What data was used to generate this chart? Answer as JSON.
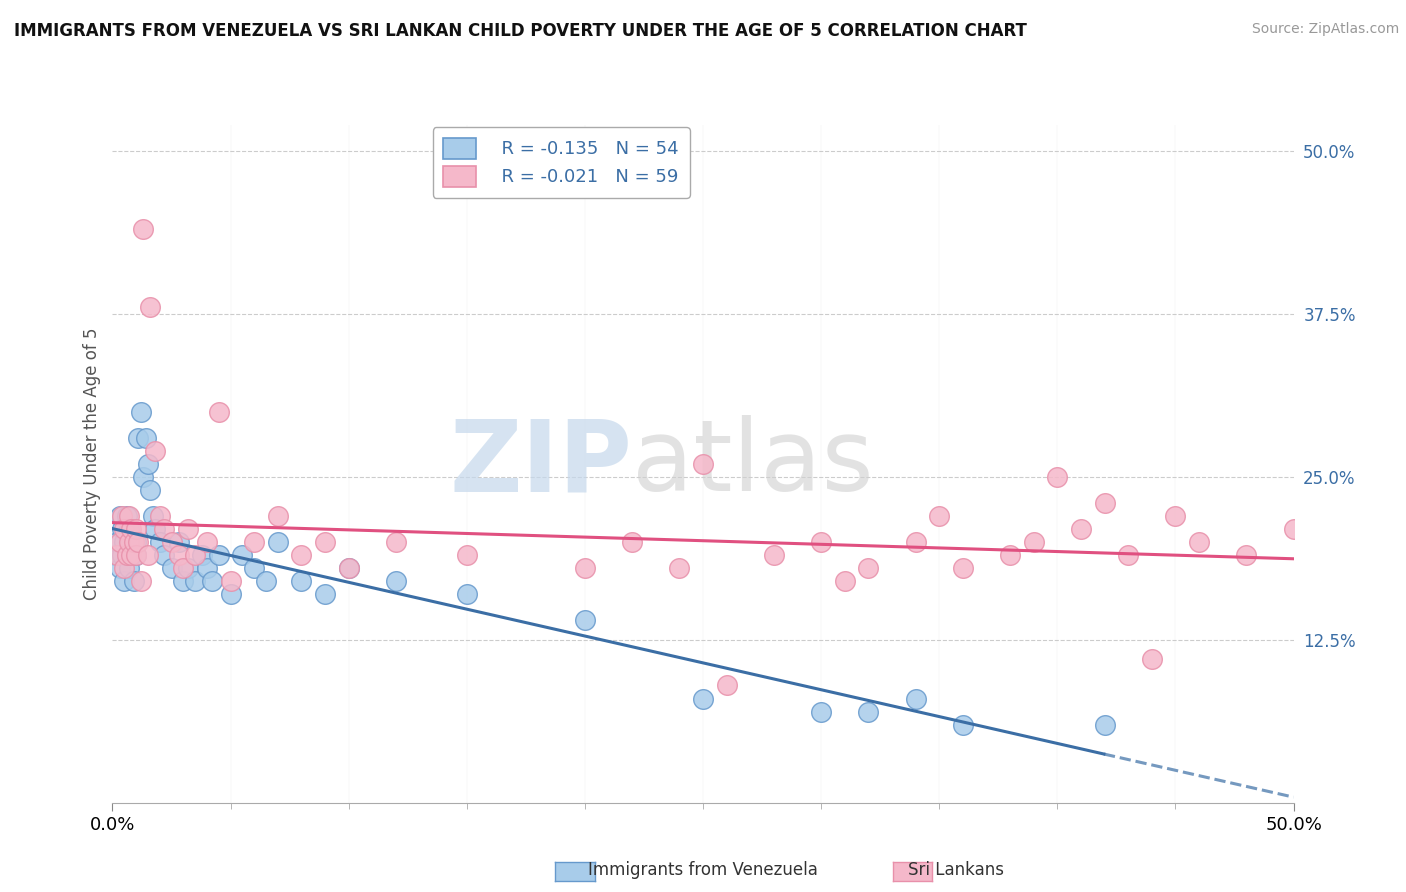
{
  "title": "IMMIGRANTS FROM VENEZUELA VS SRI LANKAN CHILD POVERTY UNDER THE AGE OF 5 CORRELATION CHART",
  "source": "Source: ZipAtlas.com",
  "ylabel": "Child Poverty Under the Age of 5",
  "right_yticks": [
    0.125,
    0.25,
    0.375,
    0.5
  ],
  "right_yticklabels": [
    "12.5%",
    "25.0%",
    "37.5%",
    "50.0%"
  ],
  "xlim": [
    0.0,
    0.5
  ],
  "ylim": [
    0.0,
    0.52
  ],
  "legend_blue_r": "R = -0.135",
  "legend_blue_n": "N = 54",
  "legend_pink_r": "R = -0.021",
  "legend_pink_n": "N = 59",
  "legend_label_blue": "Immigrants from Venezuela",
  "legend_label_pink": "Sri Lankans",
  "blue_color": "#A8CCEA",
  "pink_color": "#F5B8CA",
  "blue_edge_color": "#6699CC",
  "pink_edge_color": "#E890AA",
  "blue_line_color": "#3B6EA5",
  "pink_line_color": "#E05080",
  "watermark_zip": "ZIP",
  "watermark_atlas": "atlas",
  "watermark_color_zip": "#C8D8E8",
  "watermark_color_atlas": "#C8C8C8",
  "grid_color": "#CCCCCC",
  "blue_scatter_x": [
    0.001,
    0.002,
    0.003,
    0.003,
    0.004,
    0.004,
    0.005,
    0.005,
    0.006,
    0.006,
    0.007,
    0.007,
    0.008,
    0.008,
    0.009,
    0.009,
    0.01,
    0.01,
    0.011,
    0.012,
    0.013,
    0.014,
    0.015,
    0.016,
    0.017,
    0.018,
    0.02,
    0.022,
    0.025,
    0.028,
    0.03,
    0.032,
    0.035,
    0.038,
    0.04,
    0.042,
    0.045,
    0.05,
    0.055,
    0.06,
    0.065,
    0.07,
    0.08,
    0.09,
    0.1,
    0.12,
    0.15,
    0.2,
    0.25,
    0.3,
    0.32,
    0.34,
    0.36,
    0.42
  ],
  "blue_scatter_y": [
    0.19,
    0.2,
    0.22,
    0.18,
    0.19,
    0.21,
    0.17,
    0.2,
    0.19,
    0.22,
    0.18,
    0.21,
    0.2,
    0.19,
    0.17,
    0.2,
    0.19,
    0.2,
    0.28,
    0.3,
    0.25,
    0.28,
    0.26,
    0.24,
    0.22,
    0.21,
    0.2,
    0.19,
    0.18,
    0.2,
    0.17,
    0.18,
    0.17,
    0.19,
    0.18,
    0.17,
    0.19,
    0.16,
    0.19,
    0.18,
    0.17,
    0.2,
    0.17,
    0.16,
    0.18,
    0.17,
    0.16,
    0.14,
    0.08,
    0.07,
    0.07,
    0.08,
    0.06,
    0.06
  ],
  "pink_scatter_x": [
    0.002,
    0.003,
    0.004,
    0.005,
    0.005,
    0.006,
    0.007,
    0.007,
    0.008,
    0.008,
    0.009,
    0.01,
    0.01,
    0.011,
    0.012,
    0.013,
    0.015,
    0.016,
    0.018,
    0.02,
    0.022,
    0.025,
    0.028,
    0.03,
    0.032,
    0.035,
    0.04,
    0.045,
    0.05,
    0.06,
    0.07,
    0.08,
    0.09,
    0.1,
    0.12,
    0.15,
    0.2,
    0.22,
    0.25,
    0.28,
    0.3,
    0.32,
    0.35,
    0.38,
    0.4,
    0.42,
    0.45,
    0.46,
    0.48,
    0.5,
    0.36,
    0.39,
    0.41,
    0.43,
    0.44,
    0.34,
    0.31,
    0.26,
    0.24
  ],
  "pink_scatter_y": [
    0.19,
    0.2,
    0.22,
    0.18,
    0.21,
    0.19,
    0.22,
    0.2,
    0.19,
    0.21,
    0.2,
    0.19,
    0.21,
    0.2,
    0.17,
    0.44,
    0.19,
    0.38,
    0.27,
    0.22,
    0.21,
    0.2,
    0.19,
    0.18,
    0.21,
    0.19,
    0.2,
    0.3,
    0.17,
    0.2,
    0.22,
    0.19,
    0.2,
    0.18,
    0.2,
    0.19,
    0.18,
    0.2,
    0.26,
    0.19,
    0.2,
    0.18,
    0.22,
    0.19,
    0.25,
    0.23,
    0.22,
    0.2,
    0.19,
    0.21,
    0.18,
    0.2,
    0.21,
    0.19,
    0.11,
    0.2,
    0.17,
    0.09,
    0.18
  ]
}
